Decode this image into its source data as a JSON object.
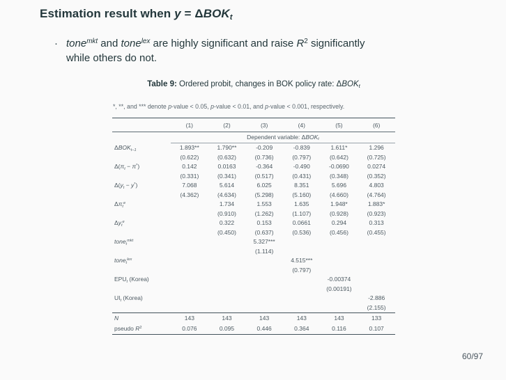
{
  "slide": {
    "title_prefix": "Estimation result when ",
    "title_math_parts": [
      [
        "y",
        "i"
      ],
      [
        " = ",
        "n"
      ],
      [
        "Δ",
        "n"
      ],
      [
        "BOK",
        "i"
      ],
      [
        "t",
        "si"
      ]
    ],
    "bullet_marker": "·",
    "bullet_parts": [
      [
        "tone",
        "i"
      ],
      [
        "mkt",
        "pi"
      ],
      [
        " and ",
        "n"
      ],
      [
        "tone",
        "i"
      ],
      [
        "lex",
        "pi"
      ],
      [
        " are highly significant and raise ",
        "n"
      ],
      [
        "R",
        "i"
      ],
      [
        "2",
        "p"
      ],
      [
        " significantly while others do not.",
        "n"
      ]
    ],
    "page_number": "60/97"
  },
  "table": {
    "caption_label": "Table 9:",
    "caption_text": " Ordered probit, changes in BOK policy rate: ",
    "caption_math_parts": [
      [
        "Δ",
        "n"
      ],
      [
        "BOK",
        "i"
      ],
      [
        "t",
        "si"
      ]
    ],
    "note_parts": [
      [
        "*, **, and *** denote ",
        "n"
      ],
      [
        "p",
        "i"
      ],
      [
        "-value < 0.05, ",
        "n"
      ],
      [
        "p",
        "i"
      ],
      [
        "-value < 0.01, and ",
        "n"
      ],
      [
        "p",
        "i"
      ],
      [
        "-value < 0.001, respectively.",
        "n"
      ]
    ],
    "columns": [
      "(1)",
      "(2)",
      "(3)",
      "(4)",
      "(5)",
      "(6)"
    ],
    "dep_parts": [
      [
        "Dependent variable: ",
        "n"
      ],
      [
        "Δ",
        "n"
      ],
      [
        "BOK",
        "i"
      ],
      [
        "t",
        "si"
      ]
    ],
    "rows": [
      {
        "label_parts": [
          [
            "Δ",
            "n"
          ],
          [
            "BOK",
            "i"
          ],
          [
            "t−1",
            "si"
          ]
        ],
        "est": [
          "1.893**",
          "1.790**",
          "-0.209",
          "-0.839",
          "1.611*",
          "1.296"
        ],
        "se": [
          "(0.622)",
          "(0.632)",
          "(0.736)",
          "(0.797)",
          "(0.642)",
          "(0.725)"
        ]
      },
      {
        "label_parts": [
          [
            "Δ(",
            "n"
          ],
          [
            "π",
            "i"
          ],
          [
            "t",
            "si"
          ],
          [
            " − ",
            "n"
          ],
          [
            "π",
            "i"
          ],
          [
            "*",
            "p"
          ],
          [
            ")",
            "n"
          ]
        ],
        "est": [
          "0.142",
          "0.0163",
          "-0.364",
          "-0.490",
          "-0.0690",
          "0.0274"
        ],
        "se": [
          "(0.331)",
          "(0.341)",
          "(0.517)",
          "(0.431)",
          "(0.348)",
          "(0.352)"
        ]
      },
      {
        "label_parts": [
          [
            "Δ(",
            "n"
          ],
          [
            "y",
            "i"
          ],
          [
            "t",
            "si"
          ],
          [
            " − ",
            "n"
          ],
          [
            "y",
            "i"
          ],
          [
            "*",
            "p"
          ],
          [
            ")",
            "n"
          ]
        ],
        "est": [
          "7.068",
          "5.614",
          "6.025",
          "8.351",
          "5.696",
          "4.803"
        ],
        "se": [
          "(4.362)",
          "(4.634)",
          "(5.298)",
          "(5.160)",
          "(4.660)",
          "(4.764)"
        ]
      },
      {
        "label_parts": [
          [
            "Δ",
            "n"
          ],
          [
            "π",
            "i"
          ],
          [
            "t",
            "si"
          ],
          [
            "e",
            "pi"
          ]
        ],
        "est": [
          "",
          "1.734",
          "1.553",
          "1.635",
          "1.948*",
          "1.883*"
        ],
        "se": [
          "",
          "(0.910)",
          "(1.262)",
          "(1.107)",
          "(0.928)",
          "(0.923)"
        ]
      },
      {
        "label_parts": [
          [
            "Δ",
            "n"
          ],
          [
            "y",
            "i"
          ],
          [
            "t",
            "si"
          ],
          [
            "e",
            "pi"
          ]
        ],
        "est": [
          "",
          "0.322",
          "0.153",
          "0.0661",
          "0.294",
          "0.313"
        ],
        "se": [
          "",
          "(0.450)",
          "(0.637)",
          "(0.536)",
          "(0.456)",
          "(0.455)"
        ]
      },
      {
        "label_parts": [
          [
            "tone",
            "i"
          ],
          [
            "t",
            "si"
          ],
          [
            "mkt",
            "pi"
          ]
        ],
        "est": [
          "",
          "",
          "5.327***",
          "",
          "",
          ""
        ],
        "se": [
          "",
          "",
          "(1.114)",
          "",
          "",
          ""
        ]
      },
      {
        "label_parts": [
          [
            "tone",
            "i"
          ],
          [
            "t",
            "si"
          ],
          [
            "lex",
            "pi"
          ]
        ],
        "est": [
          "",
          "",
          "",
          "4.515***",
          "",
          ""
        ],
        "se": [
          "",
          "",
          "",
          "(0.797)",
          "",
          ""
        ]
      },
      {
        "label_parts": [
          [
            "EPU",
            "n"
          ],
          [
            "t",
            "si"
          ],
          [
            " (Korea)",
            "n"
          ]
        ],
        "est": [
          "",
          "",
          "",
          "",
          "-0.00374",
          ""
        ],
        "se": [
          "",
          "",
          "",
          "",
          "(0.00191)",
          ""
        ]
      },
      {
        "label_parts": [
          [
            "UI",
            "n"
          ],
          [
            "t",
            "si"
          ],
          [
            " (Korea)",
            "n"
          ]
        ],
        "est": [
          "",
          "",
          "",
          "",
          "",
          "-2.886"
        ],
        "se": [
          "",
          "",
          "",
          "",
          "",
          "(2.155)"
        ]
      }
    ],
    "stats": [
      {
        "label_parts": [
          [
            "N",
            "i"
          ]
        ],
        "values": [
          "143",
          "143",
          "143",
          "143",
          "143",
          "133"
        ]
      },
      {
        "label_parts": [
          [
            "pseudo ",
            "n"
          ],
          [
            "R",
            "i"
          ],
          [
            "2",
            "p"
          ]
        ],
        "values": [
          "0.076",
          "0.095",
          "0.446",
          "0.364",
          "0.116",
          "0.107"
        ]
      }
    ]
  }
}
